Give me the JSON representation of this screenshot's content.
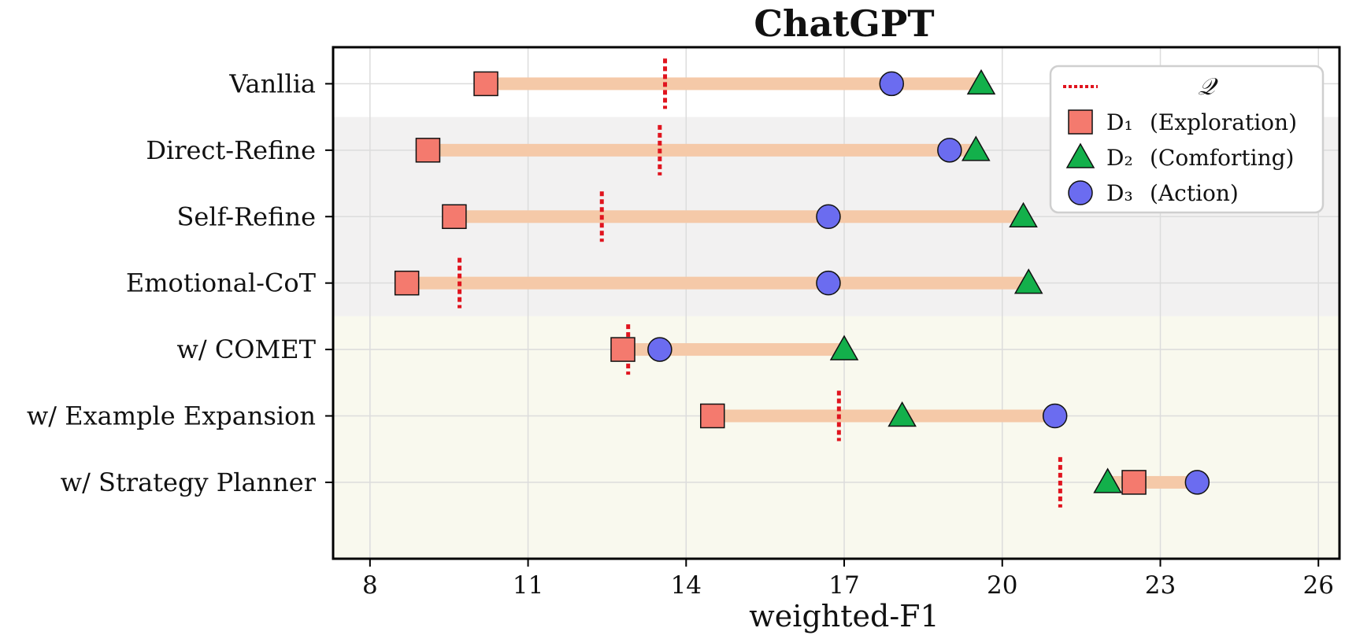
{
  "chart_data": {
    "type": "dot-range",
    "title": "ChatGPT",
    "xlabel": "weighted-F1",
    "ylabel": "",
    "xlim": [
      7.3,
      26.4
    ],
    "xticks": [
      8,
      11,
      14,
      17,
      20,
      23,
      26
    ],
    "grid": true,
    "categories": [
      "Vanllia",
      "Direct-Refine",
      "Self-Refine",
      "Emotional-CoT",
      "w/ COMET",
      "w/ Example Expansion",
      "w/ Strategy Planner"
    ],
    "bands": [
      {
        "rows": [
          1,
          3
        ],
        "color": "#f2f1f1"
      },
      {
        "rows": [
          4,
          6
        ],
        "color": "#f9f9ee"
      }
    ],
    "series": [
      {
        "name": "Q",
        "marker": "dotted-vline",
        "color": "#e0141e",
        "values": [
          13.6,
          13.5,
          12.4,
          9.7,
          12.9,
          16.9,
          21.1
        ]
      },
      {
        "name": "D1",
        "marker": "square",
        "color": "#f47a6e",
        "values": [
          10.2,
          9.1,
          9.6,
          8.7,
          12.8,
          14.5,
          22.5
        ]
      },
      {
        "name": "D2",
        "marker": "triangle",
        "color": "#13b04b",
        "values": [
          19.6,
          19.5,
          20.4,
          20.5,
          17.0,
          18.1,
          22.0
        ]
      },
      {
        "name": "D3",
        "marker": "circle",
        "color": "#6b6cf0",
        "values": [
          17.9,
          19.0,
          16.7,
          16.7,
          13.5,
          21.0,
          23.7
        ]
      }
    ],
    "range_bar_color": "#f5c9a8",
    "legend": {
      "position": "top-right",
      "entries": [
        {
          "series": "Q",
          "symbol": "𝒬",
          "desc": ""
        },
        {
          "series": "D1",
          "symbol": "D₁",
          "desc": "(Exploration)"
        },
        {
          "series": "D2",
          "symbol": "D₂",
          "desc": "(Comforting)"
        },
        {
          "series": "D3",
          "symbol": "D₃",
          "desc": "(Action)"
        }
      ]
    }
  }
}
